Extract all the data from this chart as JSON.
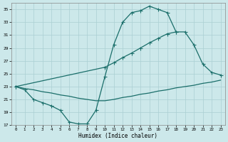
{
  "xlabel": "Humidex (Indice chaleur)",
  "bg_color": "#cce8ea",
  "grid_color": "#aacfd2",
  "line_color": "#1a6e6a",
  "xlim": [
    -0.5,
    23.5
  ],
  "ylim": [
    17,
    36
  ],
  "xticks": [
    0,
    1,
    2,
    3,
    4,
    5,
    6,
    7,
    8,
    9,
    10,
    11,
    12,
    13,
    14,
    15,
    16,
    17,
    18,
    19,
    20,
    21,
    22,
    23
  ],
  "yticks": [
    17,
    19,
    21,
    23,
    25,
    27,
    29,
    31,
    33,
    35
  ],
  "line1_x": [
    0,
    1,
    2,
    3,
    4,
    5,
    6,
    7,
    8,
    9,
    10,
    11,
    12,
    13,
    14,
    15,
    16,
    17,
    18
  ],
  "line1_y": [
    23,
    22.5,
    21,
    20.5,
    20,
    19.3,
    17.5,
    17.2,
    17.2,
    19.3,
    24.5,
    29.5,
    33,
    34.5,
    34.8,
    35.5,
    35,
    34.5,
    31.5
  ],
  "line2_x": [
    0,
    10,
    11,
    12,
    13,
    14,
    15,
    16,
    17,
    18,
    19,
    20,
    21,
    22,
    23
  ],
  "line2_y": [
    23,
    26,
    26.7,
    27.5,
    28.2,
    29,
    29.8,
    30.5,
    31.2,
    31.5,
    31.5,
    29.5,
    26.5,
    25.2,
    24.8
  ],
  "line3_x": [
    0,
    1,
    2,
    3,
    4,
    5,
    6,
    7,
    8,
    9,
    10,
    11,
    12,
    13,
    14,
    15,
    16,
    17,
    18,
    19,
    20,
    21,
    22,
    23
  ],
  "line3_y": [
    23,
    22.7,
    22.5,
    22.2,
    22.0,
    21.7,
    21.5,
    21.2,
    21.0,
    20.8,
    20.8,
    21.0,
    21.3,
    21.5,
    21.8,
    22.0,
    22.3,
    22.5,
    22.8,
    23.0,
    23.2,
    23.5,
    23.7,
    24.0
  ]
}
